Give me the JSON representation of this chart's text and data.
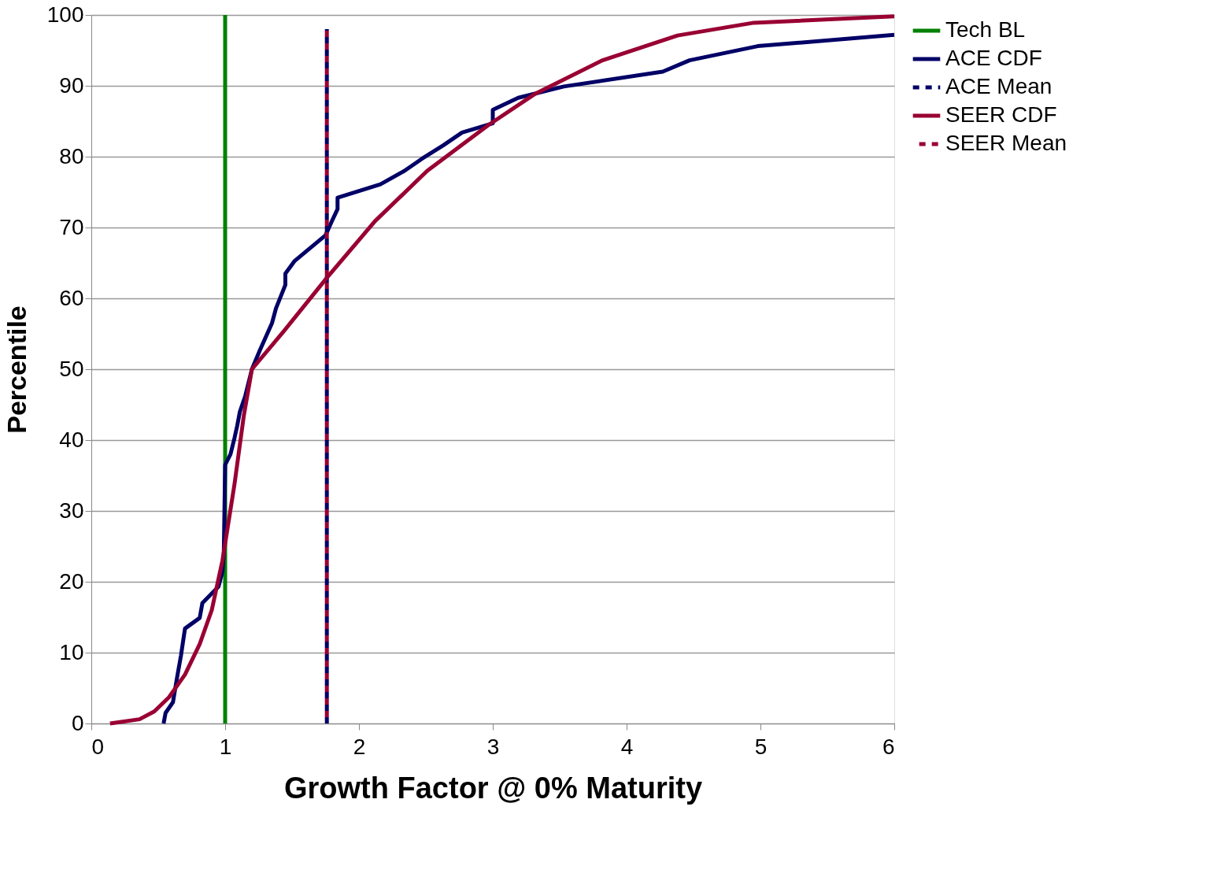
{
  "chart_data": {
    "type": "line",
    "xlabel": "Growth Factor @ 0% Maturity",
    "ylabel": "Percentile",
    "xlim": [
      0,
      6
    ],
    "xticks": [
      0,
      1,
      2,
      3,
      4,
      5,
      6
    ],
    "ylim": [
      0,
      100
    ],
    "yticks": [
      0,
      10,
      20,
      30,
      40,
      50,
      60,
      70,
      80,
      90,
      100
    ],
    "grid": "y",
    "legend": "right",
    "marker": "none",
    "series": [
      {
        "name": "Tech BL",
        "color": "#008000",
        "line_style": "solid",
        "x": [
          1,
          1
        ],
        "values": [
          0,
          100
        ]
      },
      {
        "name": "ACE CDF",
        "color": "#000066",
        "line_style": "solid",
        "x": [
          0.54,
          0.555,
          0.61,
          0.64,
          0.67,
          0.7,
          0.81,
          0.83,
          0.95,
          0.98,
          0.99,
          1.0,
          1.04,
          1.07,
          1.09,
          1.11,
          1.15,
          1.2,
          1.26,
          1.35,
          1.38,
          1.45,
          1.45,
          1.52,
          1.75,
          1.8,
          1.84,
          1.84,
          2.16,
          2.34,
          2.47,
          2.63,
          2.77,
          3.0,
          3.0,
          3.19,
          3.53,
          4.27,
          4.47,
          4.98,
          6.0
        ],
        "values": [
          0,
          1.5,
          3,
          6.4,
          9.6,
          13.4,
          14.9,
          17,
          19.3,
          21.4,
          24,
          36.5,
          38,
          40.3,
          42,
          44,
          46.2,
          50,
          52.7,
          56.5,
          58.6,
          61.9,
          63.5,
          65.3,
          68.9,
          71,
          72.6,
          74.2,
          76.1,
          78,
          79.7,
          81.6,
          83.4,
          84.7,
          86.6,
          88.3,
          89.9,
          92,
          93.6,
          95.6,
          97.2
        ]
      },
      {
        "name": "ACE Mean",
        "color": "#000066",
        "line_style": "dashed",
        "x": [
          1.76,
          1.76
        ],
        "values": [
          0,
          98
        ]
      },
      {
        "name": "SEER CDF",
        "color": "#990033",
        "line_style": "solid",
        "x": [
          0.14,
          0.36,
          0.47,
          0.58,
          0.7,
          0.81,
          0.9,
          0.98,
          1.07,
          1.14,
          1.2,
          1.44,
          1.76,
          2.12,
          2.51,
          2.97,
          3.31,
          3.82,
          4.38,
          4.95,
          6.0
        ],
        "values": [
          0,
          0.6,
          1.7,
          3.7,
          6.9,
          11.2,
          16,
          23,
          33.8,
          43.5,
          50,
          55.4,
          62.9,
          70.9,
          78,
          84.5,
          88.8,
          93.6,
          97.1,
          98.9,
          99.8
        ]
      },
      {
        "name": "SEER Mean",
        "color": "#990033",
        "line_style": "dashed",
        "x": [
          1.76,
          1.76
        ],
        "values": [
          0,
          98
        ]
      }
    ]
  }
}
